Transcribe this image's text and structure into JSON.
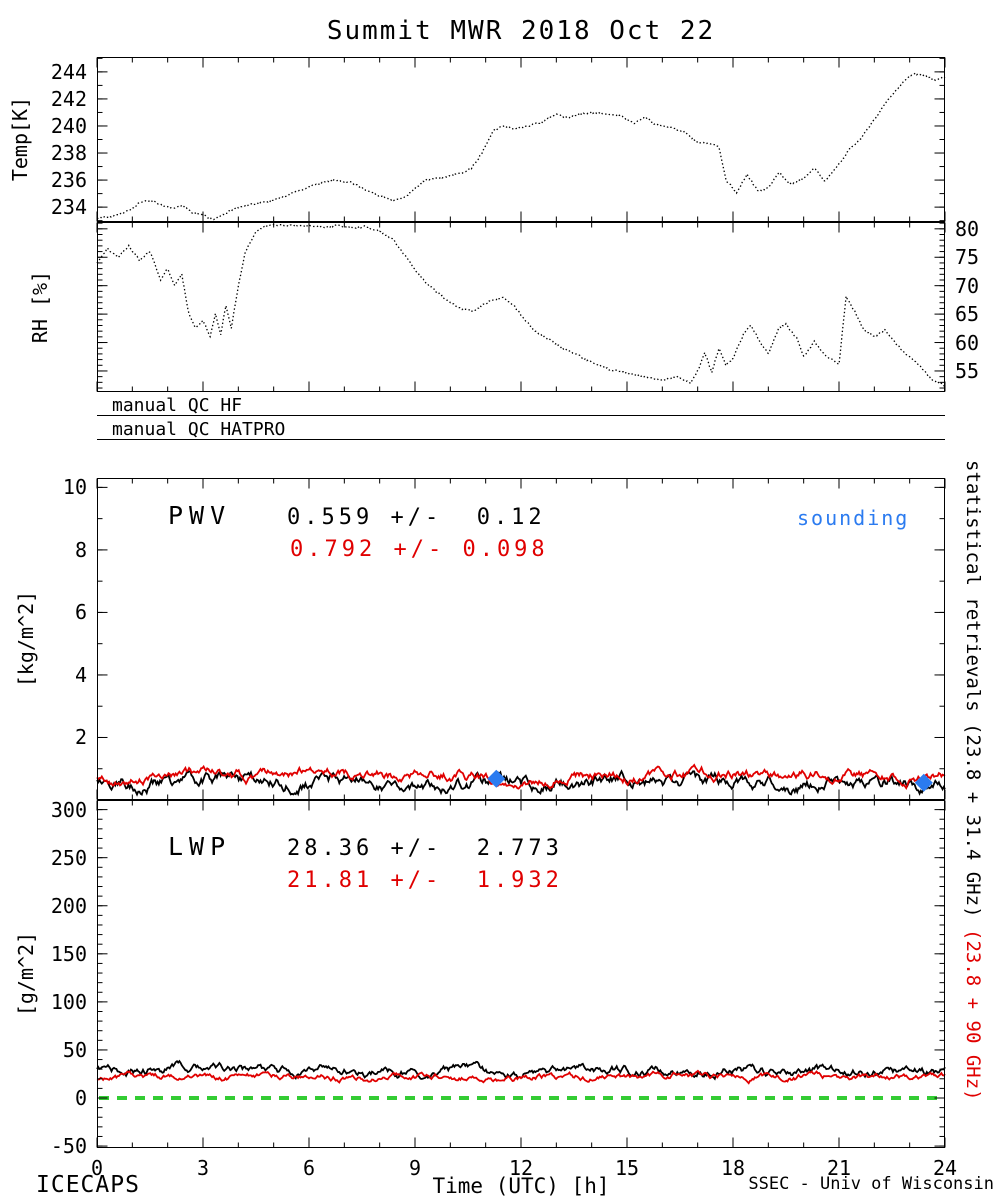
{
  "title": "Summit MWR 2018 Oct 22",
  "colors": {
    "black": "#000000",
    "red": "#e00000",
    "blue": "#2b7bf0",
    "green": "#33cc33"
  },
  "qc_flags": [
    "manual QC HF",
    "manual QC HATPRO"
  ],
  "right_label": {
    "black": "statistical retrievals (23.8 + 31.4 GHz)",
    "red": "(23.8 + 90 GHz)"
  },
  "footer": {
    "left": "ICECAPS",
    "xlabel": "Time (UTC) [h]",
    "right": "SSEC - Univ of Wisconsin"
  },
  "chart_data": [
    {
      "id": "temp",
      "type": "line",
      "ylabel": "Temp[K]",
      "ylim": [
        232.9,
        245.1
      ],
      "yticks": [
        234,
        236,
        238,
        240,
        242,
        244
      ],
      "yminor": 1,
      "ytick_side": "left",
      "xlim": [
        0,
        24
      ],
      "xticks": [
        0,
        3,
        6,
        9,
        12,
        15,
        18,
        21,
        24
      ],
      "xminor": 1,
      "series": [
        {
          "name": "brightness-temperature",
          "color": "#000000",
          "style": "dotted",
          "x": [
            0,
            0.4,
            0.8,
            1.2,
            1.5,
            1.8,
            2.1,
            2.4,
            2.7,
            3.0,
            3.3,
            3.6,
            4.0,
            4.4,
            4.8,
            5.2,
            5.6,
            6.0,
            6.4,
            6.8,
            7.2,
            7.6,
            8.0,
            8.4,
            8.7,
            9.0,
            9.3,
            9.6,
            10.0,
            10.3,
            10.6,
            10.9,
            11.2,
            11.5,
            11.8,
            12.2,
            12.6,
            13.0,
            13.3,
            13.6,
            14.0,
            14.4,
            14.8,
            15.2,
            15.5,
            15.8,
            16.2,
            16.6,
            17.0,
            17.4,
            17.6,
            17.8,
            18.1,
            18.4,
            18.7,
            19.0,
            19.3,
            19.6,
            20.0,
            20.3,
            20.6,
            21.0,
            21.3,
            21.6,
            22.0,
            22.4,
            22.8,
            23.1,
            23.4,
            23.7,
            24.0
          ],
          "y": [
            233.2,
            233.3,
            233.6,
            234.3,
            234.5,
            234.2,
            233.9,
            234.1,
            233.6,
            233.4,
            233.1,
            233.5,
            234.0,
            234.2,
            234.4,
            234.7,
            235.1,
            235.5,
            235.8,
            236.0,
            235.8,
            235.3,
            234.8,
            234.5,
            234.7,
            235.4,
            236.0,
            236.1,
            236.3,
            236.5,
            236.9,
            238.0,
            239.6,
            240.0,
            239.8,
            240.0,
            240.3,
            240.9,
            240.6,
            240.8,
            241.0,
            240.9,
            240.8,
            240.2,
            240.7,
            240.1,
            239.9,
            239.6,
            238.8,
            238.7,
            238.5,
            236.0,
            235.1,
            236.4,
            235.2,
            235.4,
            236.6,
            235.7,
            236.1,
            236.9,
            235.9,
            237.2,
            238.3,
            239.0,
            240.5,
            242.0,
            243.2,
            243.9,
            243.7,
            243.4,
            243.6
          ]
        }
      ]
    },
    {
      "id": "rh",
      "type": "line",
      "ylabel": "RH [%]",
      "ylim": [
        51.3,
        81.2
      ],
      "yticks": [
        55,
        60,
        65,
        70,
        75,
        80
      ],
      "yminor": 1,
      "ytick_side": "right",
      "xlim": [
        0,
        24
      ],
      "xticks": [
        0,
        3,
        6,
        9,
        12,
        15,
        18,
        21,
        24
      ],
      "xminor": 1,
      "series": [
        {
          "name": "relative-humidity",
          "color": "#000000",
          "style": "dotted",
          "x": [
            0,
            0.3,
            0.6,
            0.9,
            1.2,
            1.5,
            1.8,
            2.0,
            2.2,
            2.4,
            2.6,
            2.8,
            3.0,
            3.2,
            3.35,
            3.5,
            3.65,
            3.8,
            4.0,
            4.2,
            4.5,
            4.8,
            5.2,
            5.6,
            6.0,
            6.4,
            6.8,
            7.2,
            7.6,
            8.0,
            8.4,
            8.8,
            9.1,
            9.4,
            9.7,
            10.0,
            10.3,
            10.6,
            10.9,
            11.2,
            11.5,
            11.8,
            12.1,
            12.4,
            12.8,
            13.2,
            13.6,
            14.0,
            14.5,
            15.0,
            15.5,
            16.0,
            16.4,
            16.8,
            17.0,
            17.2,
            17.4,
            17.6,
            17.8,
            18.0,
            18.3,
            18.5,
            18.8,
            19.0,
            19.3,
            19.5,
            19.8,
            20.0,
            20.3,
            20.6,
            21.0,
            21.2,
            21.4,
            21.7,
            22.0,
            22.3,
            22.6,
            23.0,
            23.3,
            23.6,
            24.0
          ],
          "y": [
            74,
            76.5,
            75,
            77,
            74.5,
            76,
            71,
            73,
            70,
            72,
            65,
            62.5,
            64,
            61,
            65,
            61.5,
            66.5,
            62.5,
            70,
            76,
            79.5,
            80.5,
            80.7,
            80.5,
            80.6,
            80.3,
            80.6,
            80.2,
            80.4,
            79.5,
            78,
            74.5,
            72,
            70,
            68.5,
            67,
            66,
            65.5,
            66.5,
            67.5,
            68,
            66.5,
            64,
            62,
            60.5,
            59,
            57.8,
            56.5,
            55.3,
            54.6,
            54,
            53.4,
            54,
            52.8,
            55,
            58.2,
            54.8,
            59,
            56,
            57.2,
            61.5,
            63,
            59.8,
            58,
            62.5,
            63.2,
            60.8,
            57.5,
            60.2,
            57.8,
            56.2,
            68,
            66,
            62.2,
            61,
            62.3,
            59.8,
            57.4,
            55.8,
            53.6,
            52.4
          ]
        }
      ]
    },
    {
      "id": "pwv",
      "type": "line",
      "ylabel": "[kg/m^2]",
      "ylim": [
        0,
        10.3
      ],
      "yticks": [
        2,
        4,
        6,
        8,
        10
      ],
      "yminor": 1,
      "ytick_side": "left",
      "xlim": [
        0,
        24
      ],
      "xticks": [
        0,
        3,
        6,
        9,
        12,
        15,
        18,
        21,
        24
      ],
      "xminor": 1,
      "annotations": {
        "label": "PWV",
        "stat_black": "0.559 +/-  0.12",
        "stat_red": "0.792 +/- 0.098",
        "sounding": "sounding"
      },
      "series": [
        {
          "name": "pwv 23.8+31.4 GHz",
          "color": "#000000",
          "style": "noisy",
          "mean": 0.559,
          "std": 0.12
        },
        {
          "name": "pwv 23.8+90 GHz",
          "color": "#e00000",
          "style": "noisy",
          "mean": 0.792,
          "std": 0.098
        }
      ],
      "markers": [
        {
          "type": "diamond",
          "color": "#2b7bf0",
          "x": 11.3,
          "y": 0.68
        },
        {
          "type": "diamond",
          "color": "#2b7bf0",
          "x": 23.4,
          "y": 0.55
        }
      ]
    },
    {
      "id": "lwp",
      "type": "line",
      "ylabel": "[g/m^2]",
      "ylim": [
        -52,
        310
      ],
      "yticks": [
        -50,
        0,
        50,
        100,
        150,
        200,
        250,
        300
      ],
      "yminor": 10,
      "ytick_side": "left",
      "xlim": [
        0,
        24
      ],
      "xticks": [
        0,
        3,
        6,
        9,
        12,
        15,
        18,
        21,
        24
      ],
      "xminor": 1,
      "annotations": {
        "label": "LWP",
        "stat_black": "28.36 +/-  2.773",
        "stat_red": "21.81 +/-  1.932"
      },
      "series": [
        {
          "name": "lwp 23.8+31.4 GHz",
          "color": "#000000",
          "style": "noisy",
          "mean": 28.36,
          "std": 2.773
        },
        {
          "name": "lwp 23.8+90 GHz",
          "color": "#e00000",
          "style": "noisy",
          "mean": 21.81,
          "std": 1.932
        }
      ],
      "zero_line": {
        "y": 0,
        "color": "#33cc33",
        "style": "dashed"
      }
    }
  ]
}
